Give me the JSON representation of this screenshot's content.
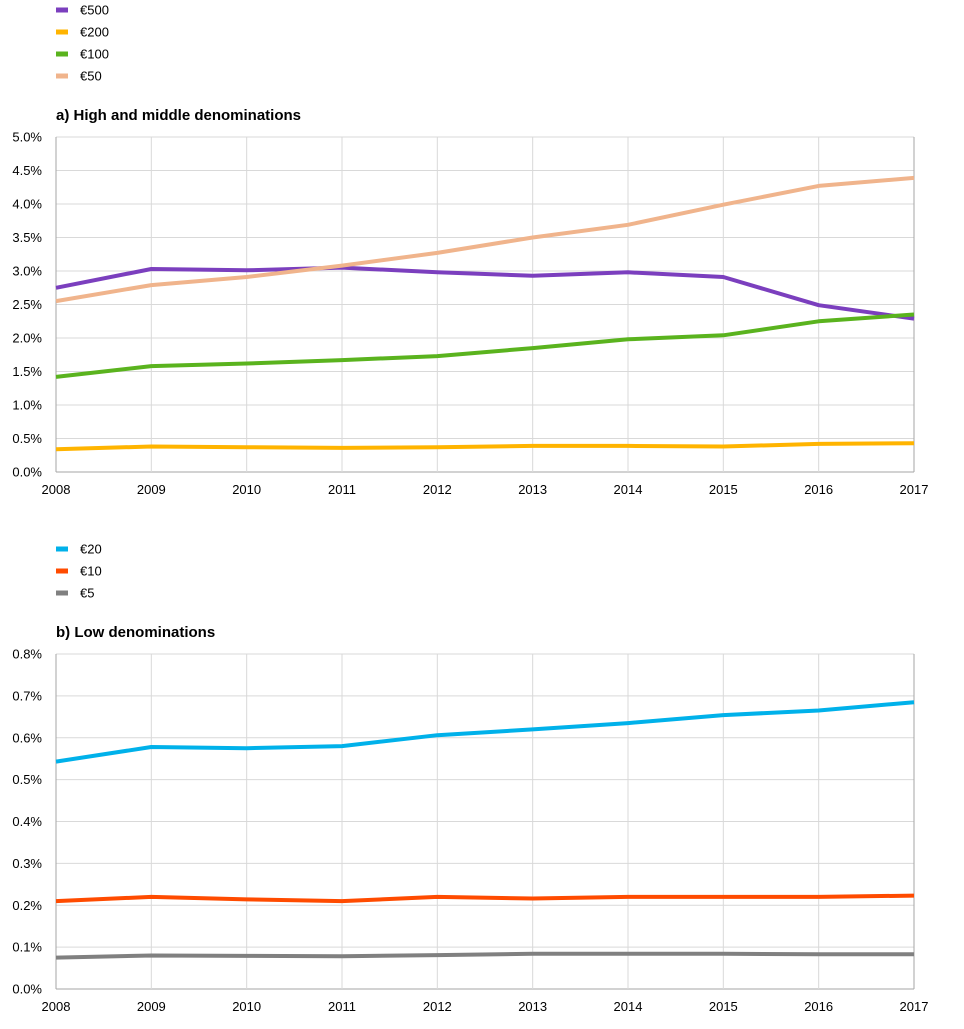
{
  "chart_data": [
    {
      "type": "line",
      "title": "a) High and middle denominations",
      "x": [
        "2008",
        "2009",
        "2010",
        "2011",
        "2012",
        "2013",
        "2014",
        "2015",
        "2016",
        "2017"
      ],
      "ylim": [
        0,
        5.0
      ],
      "yticks": [
        "0.0%",
        "0.5%",
        "1.0%",
        "1.5%",
        "2.0%",
        "2.5%",
        "3.0%",
        "3.5%",
        "4.0%",
        "4.5%",
        "5.0%"
      ],
      "grid": true,
      "legend_position": "top-left",
      "series": [
        {
          "name": "€500",
          "color": "#7b3fbe",
          "values": [
            2.75,
            3.03,
            3.01,
            3.05,
            2.98,
            2.93,
            2.98,
            2.91,
            2.49,
            2.29
          ]
        },
        {
          "name": "€200",
          "color": "#ffb400",
          "values": [
            0.34,
            0.38,
            0.37,
            0.36,
            0.37,
            0.39,
            0.39,
            0.38,
            0.42,
            0.43
          ]
        },
        {
          "name": "€100",
          "color": "#5ab31e",
          "values": [
            1.42,
            1.58,
            1.62,
            1.67,
            1.73,
            1.85,
            1.98,
            2.04,
            2.25,
            2.35
          ]
        },
        {
          "name": "€50",
          "color": "#f0b48c",
          "values": [
            2.55,
            2.79,
            2.91,
            3.08,
            3.27,
            3.5,
            3.69,
            3.99,
            4.27,
            4.39
          ]
        }
      ]
    },
    {
      "type": "line",
      "title": "b) Low denominations",
      "x": [
        "2008",
        "2009",
        "2010",
        "2011",
        "2012",
        "2013",
        "2014",
        "2015",
        "2016",
        "2017"
      ],
      "ylim": [
        0,
        0.8
      ],
      "yticks": [
        "0.0%",
        "0.1%",
        "0.2%",
        "0.3%",
        "0.4%",
        "0.5%",
        "0.6%",
        "0.7%",
        "0.8%"
      ],
      "grid": true,
      "legend_position": "top-left",
      "series": [
        {
          "name": "€20",
          "color": "#00b1ea",
          "values": [
            0.543,
            0.578,
            0.575,
            0.58,
            0.606,
            0.62,
            0.635,
            0.654,
            0.665,
            0.685
          ]
        },
        {
          "name": "€10",
          "color": "#ff4b00",
          "values": [
            0.21,
            0.22,
            0.214,
            0.21,
            0.22,
            0.216,
            0.22,
            0.22,
            0.22,
            0.223
          ]
        },
        {
          "name": "€5",
          "color": "#808080",
          "values": [
            0.075,
            0.08,
            0.079,
            0.078,
            0.081,
            0.084,
            0.084,
            0.084,
            0.083,
            0.083
          ]
        }
      ]
    }
  ]
}
